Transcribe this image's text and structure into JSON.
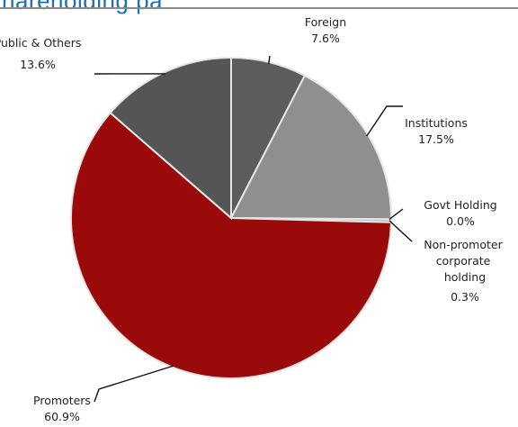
{
  "header": {
    "partial_title": "hareholding pa"
  },
  "chart_data": {
    "type": "pie",
    "title": "",
    "start_angle_deg": 0,
    "direction": "clockwise",
    "slices": [
      {
        "label": "Foreign",
        "value_label": "7.6%",
        "value": 7.6,
        "color": "#5c5c5c"
      },
      {
        "label": "Institutions",
        "value_label": "17.5%",
        "value": 17.5,
        "color": "#8f8f8f"
      },
      {
        "label": "Govt Holding",
        "value_label": "0.0%",
        "value": 0.0,
        "color": "#a0a0a0"
      },
      {
        "label": "Non-promoter corporate holding",
        "value_label": "0.3%",
        "value": 0.3,
        "color": "#b5b5b5"
      },
      {
        "label": "Promoters",
        "value_label": "60.9%",
        "value": 60.9,
        "color": "#9b0a0a"
      },
      {
        "label": "Public & Others",
        "value_label": "13.6%",
        "value": 13.6,
        "color": "#555555"
      }
    ]
  }
}
